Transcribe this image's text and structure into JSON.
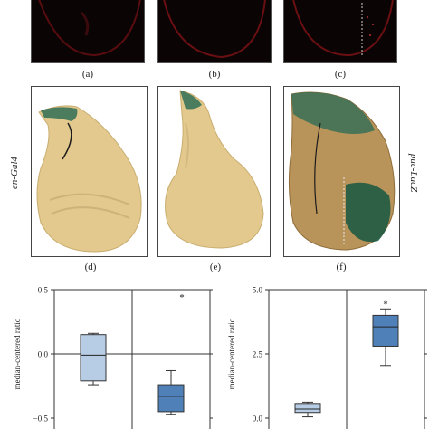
{
  "captions": {
    "a": "(a)",
    "b": "(b)",
    "c": "(c)",
    "d": "(d)",
    "e": "(e)",
    "f": "(f)"
  },
  "side_labels": {
    "left": "en-Gal4",
    "right": "puc-LacZ"
  },
  "colors": {
    "dark_bg": "#0b0405",
    "red_signal": "#6b0f12",
    "tissue_tan": "#e3c98e",
    "xgal_blue": "#2f6e55",
    "box_light": "#b7cde6",
    "box_dark": "#4f80b8"
  },
  "chart_data": [
    {
      "type": "box",
      "ylabel": "median-centered ratio",
      "ylim": [
        -0.5,
        0.5
      ],
      "yticks": [
        "0.5",
        "0.0",
        "−0.5"
      ],
      "boxes": [
        {
          "whisker_low": -0.24,
          "q1": -0.21,
          "median": -0.01,
          "q3": 0.15,
          "whisker_high": 0.16
        },
        {
          "whisker_low": -0.47,
          "q1": -0.45,
          "median": -0.33,
          "q3": -0.24,
          "whisker_high": -0.13,
          "outlier": 0.45
        }
      ],
      "annotation": "*"
    },
    {
      "type": "box",
      "ylabel": "median-centered ratio",
      "ylim": [
        0,
        5.0
      ],
      "yticks": [
        "5.0",
        "2.5",
        "0.0"
      ],
      "boxes": [
        {
          "whisker_low": 0.05,
          "q1": 0.22,
          "median": 0.35,
          "q3": 0.57,
          "whisker_high": 0.62
        },
        {
          "whisker_low": 2.05,
          "q1": 2.8,
          "median": 3.55,
          "q3": 4.0,
          "whisker_high": 4.25
        }
      ],
      "annotation": "*"
    }
  ]
}
